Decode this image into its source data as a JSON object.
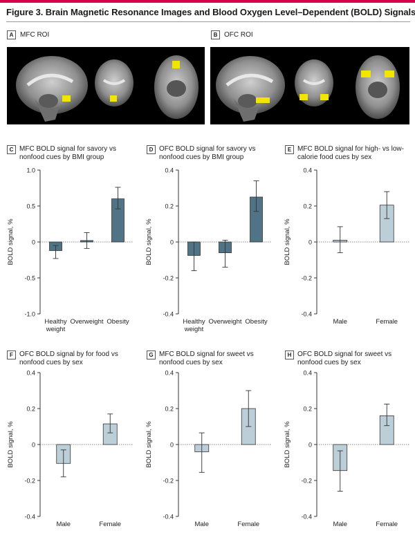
{
  "figure": {
    "title": "Figure 3. Brain Magnetic Resonance Images and Blood Oxygen Level–Dependent (BOLD) Signals",
    "accent_color": "#d6004b"
  },
  "images": [
    {
      "letter": "A",
      "label": "MFC ROI"
    },
    {
      "letter": "B",
      "label": "OFC ROI"
    }
  ],
  "chart_data": [
    {
      "letter": "C",
      "title": "MFC BOLD signal for savory vs nonfood cues by BMI group",
      "type": "bar",
      "ylabel": "BOLD signal, %",
      "ylim": [
        -1.0,
        1.0
      ],
      "yticks": [
        "1.0",
        "0.5",
        "0",
        "-0.5",
        "-1.0"
      ],
      "ytick_values": [
        1.0,
        0.5,
        0,
        -0.5,
        -1.0
      ],
      "categories": [
        [
          "Healthy",
          "weight"
        ],
        [
          "Overweight"
        ],
        [
          "Obesity"
        ]
      ],
      "values": [
        -0.12,
        0.02,
        0.6
      ],
      "err_low": [
        -0.23,
        -0.09,
        0.46
      ],
      "err_high": [
        -0.05,
        0.13,
        0.76
      ],
      "bar_color": "#507485"
    },
    {
      "letter": "D",
      "title": "OFC BOLD signal for savory vs nonfood cues by BMI group",
      "type": "bar",
      "ylabel": "BOLD signal, %",
      "ylim": [
        -0.4,
        0.4
      ],
      "yticks": [
        "0.4",
        "0.2",
        "0",
        "-0.2",
        "-0.4"
      ],
      "ytick_values": [
        0.4,
        0.2,
        0,
        -0.2,
        -0.4
      ],
      "categories": [
        [
          "Healthy",
          "weight"
        ],
        [
          "Overweight"
        ],
        [
          "Obesity"
        ]
      ],
      "values": [
        -0.075,
        -0.06,
        0.25
      ],
      "err_low": [
        -0.16,
        -0.14,
        0.17
      ],
      "err_high": [
        0.0,
        0.01,
        0.34
      ],
      "bar_color": "#507485"
    },
    {
      "letter": "E",
      "title": "MFC BOLD signal for high- vs low-calorie food cues by sex",
      "type": "bar",
      "ylabel": "BOLD signal, %",
      "ylim": [
        -0.4,
        0.4
      ],
      "yticks": [
        "0.4",
        "0.2",
        "0",
        "-0.2",
        "-0.4"
      ],
      "ytick_values": [
        0.4,
        0.2,
        0,
        -0.2,
        -0.4
      ],
      "categories": [
        [
          "Male"
        ],
        [
          "Female"
        ]
      ],
      "values": [
        0.01,
        0.205
      ],
      "err_low": [
        -0.06,
        0.13
      ],
      "err_high": [
        0.085,
        0.28
      ],
      "bar_color": "#bccfd8"
    },
    {
      "letter": "F",
      "title": "OFC BOLD signal by for food vs nonfood cues by sex",
      "type": "bar",
      "ylabel": "BOLD signal, %",
      "ylim": [
        -0.4,
        0.4
      ],
      "yticks": [
        "0.4",
        "0.2",
        "0",
        "-0.2",
        "-0.4"
      ],
      "ytick_values": [
        0.4,
        0.2,
        0,
        -0.2,
        -0.4
      ],
      "categories": [
        [
          "Male"
        ],
        [
          "Female"
        ]
      ],
      "values": [
        -0.105,
        0.115
      ],
      "err_low": [
        -0.18,
        0.065
      ],
      "err_high": [
        -0.03,
        0.17
      ],
      "bar_color": "#bccfd8"
    },
    {
      "letter": "G",
      "title": "MFC BOLD signal for sweet vs nonfood cues by sex",
      "type": "bar",
      "ylabel": "BOLD signal, %",
      "ylim": [
        -0.4,
        0.4
      ],
      "yticks": [
        "0.4",
        "0.2",
        "0",
        "-0.2",
        "-0.4"
      ],
      "ytick_values": [
        0.4,
        0.2,
        0,
        -0.2,
        -0.4
      ],
      "categories": [
        [
          "Male"
        ],
        [
          "Female"
        ]
      ],
      "values": [
        -0.04,
        0.2
      ],
      "err_low": [
        -0.155,
        0.1
      ],
      "err_high": [
        0.065,
        0.3
      ],
      "bar_color": "#bccfd8"
    },
    {
      "letter": "H",
      "title": "OFC BOLD signal for sweet vs nonfood cues by sex",
      "type": "bar",
      "ylabel": "BOLD signal, %",
      "ylim": [
        -0.4,
        0.4
      ],
      "yticks": [
        "0.4",
        "0.2",
        "0",
        "-0.2",
        "-0.4"
      ],
      "ytick_values": [
        0.4,
        0.2,
        0,
        -0.2,
        -0.4
      ],
      "categories": [
        [
          "Male"
        ],
        [
          "Female"
        ]
      ],
      "values": [
        -0.145,
        0.16
      ],
      "err_low": [
        -0.26,
        0.105
      ],
      "err_high": [
        -0.035,
        0.225
      ],
      "bar_color": "#bccfd8"
    }
  ]
}
